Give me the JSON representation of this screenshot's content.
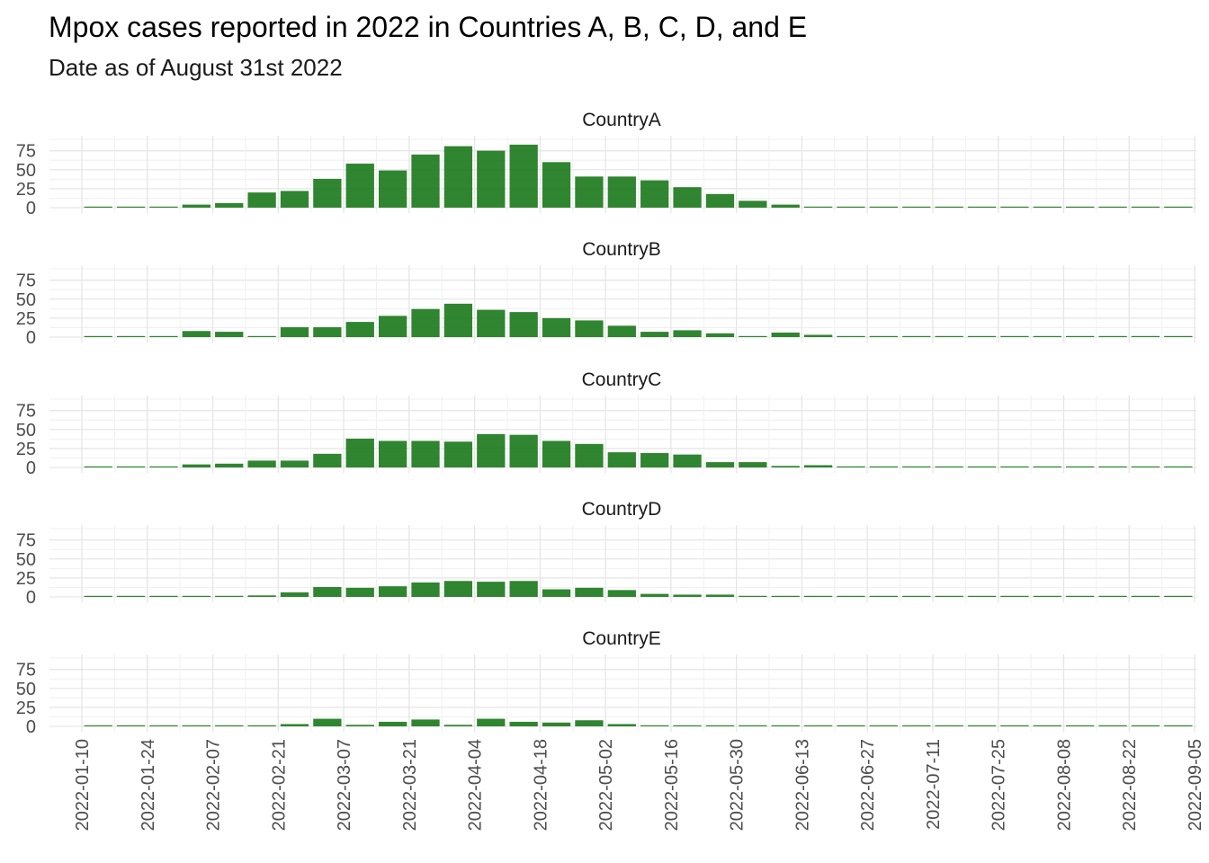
{
  "title": "Mpox cases reported in 2022 in Countries A, B, C, D, and E",
  "subtitle": "Date as of August 31st 2022",
  "chart_data": {
    "type": "bar",
    "facet": "vertical small multiples, one panel per country",
    "bar_color": "#1e7b1e",
    "grid": true,
    "ylim": [
      0,
      90
    ],
    "yticks": [
      0,
      25,
      50,
      75
    ],
    "x_start": "2022-01-10",
    "x_end": "2022-09-05",
    "x_tick_labels": [
      "2022-01-10",
      "2022-01-24",
      "2022-02-07",
      "2022-02-21",
      "2022-03-07",
      "2022-03-21",
      "2022-04-04",
      "2022-04-18",
      "2022-05-02",
      "2022-05-16",
      "2022-05-30",
      "2022-06-13",
      "2022-06-27",
      "2022-07-11",
      "2022-07-25",
      "2022-08-08",
      "2022-08-22",
      "2022-09-05"
    ],
    "categories": [
      "2022-01-10",
      "2022-01-17",
      "2022-01-24",
      "2022-01-31",
      "2022-02-07",
      "2022-02-14",
      "2022-02-21",
      "2022-02-28",
      "2022-03-07",
      "2022-03-14",
      "2022-03-21",
      "2022-03-28",
      "2022-04-04",
      "2022-04-11",
      "2022-04-18",
      "2022-04-25",
      "2022-05-02",
      "2022-05-09",
      "2022-05-16",
      "2022-05-23",
      "2022-05-30",
      "2022-06-06",
      "2022-06-13",
      "2022-06-20",
      "2022-06-27",
      "2022-07-04",
      "2022-07-11",
      "2022-07-18",
      "2022-07-25",
      "2022-08-01",
      "2022-08-08",
      "2022-08-15",
      "2022-08-22",
      "2022-08-29"
    ],
    "series": [
      {
        "name": "CountryA",
        "values": [
          0,
          0,
          1,
          4,
          6,
          20,
          22,
          38,
          58,
          49,
          70,
          81,
          75,
          83,
          60,
          41,
          41,
          36,
          27,
          18,
          9,
          4,
          0,
          0,
          0,
          0,
          0,
          0,
          0,
          0,
          0,
          0,
          0,
          0
        ]
      },
      {
        "name": "CountryB",
        "values": [
          0,
          0,
          0,
          8,
          7,
          1,
          13,
          13,
          20,
          28,
          37,
          44,
          36,
          33,
          25,
          22,
          15,
          7,
          9,
          5,
          1,
          6,
          3,
          1,
          1,
          0,
          0,
          0,
          0,
          0,
          0,
          0,
          0,
          0
        ]
      },
      {
        "name": "CountryC",
        "values": [
          0,
          0,
          0,
          4,
          5,
          9,
          9,
          18,
          38,
          35,
          35,
          34,
          44,
          43,
          35,
          31,
          20,
          19,
          17,
          7,
          7,
          2,
          3,
          1,
          0,
          0,
          1,
          0,
          0,
          0,
          0,
          0,
          0,
          0
        ]
      },
      {
        "name": "CountryD",
        "values": [
          0,
          0,
          0,
          0,
          1,
          2,
          6,
          13,
          12,
          14,
          19,
          21,
          20,
          21,
          10,
          12,
          9,
          4,
          3,
          3,
          1,
          0,
          0,
          1,
          0,
          0,
          0,
          0,
          0,
          0,
          0,
          0,
          0,
          0
        ]
      },
      {
        "name": "CountryE",
        "values": [
          0,
          0,
          0,
          0,
          0,
          0,
          3,
          10,
          2,
          6,
          9,
          2,
          10,
          6,
          5,
          8,
          3,
          0,
          0,
          0,
          0,
          0,
          0,
          0,
          0,
          0,
          0,
          0,
          0,
          0,
          0,
          0,
          0,
          0
        ]
      }
    ]
  }
}
